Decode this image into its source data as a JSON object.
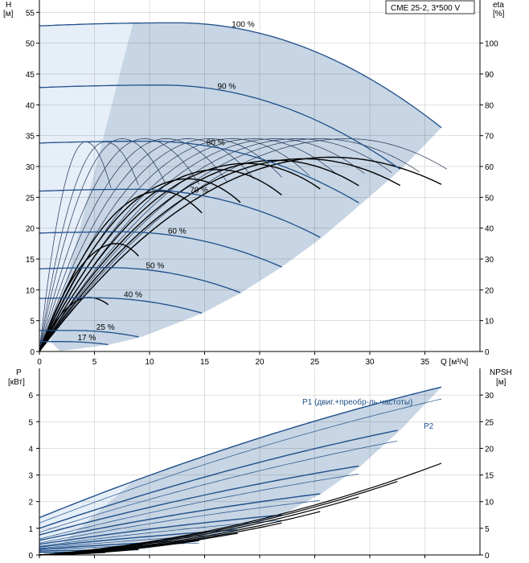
{
  "title": "CME 25-2, 3*500 V",
  "colors": {
    "region_dark": "#c7d5e4",
    "region_light": "#e6eef8",
    "curve_blue": "#1f4f8a",
    "curve_thin": "#223355",
    "curve_black": "#000000",
    "axis": "#000000",
    "grid": "#000000"
  },
  "chart_data": [
    {
      "type": "line",
      "name": "head-efficiency",
      "ylabel_left": "H",
      "yunit_left": "[м]",
      "ylabel_right": "eta",
      "yunit_right": "[%]",
      "xlabel": "Q [м³/ч]",
      "xlim": [
        0,
        40
      ],
      "ylim": [
        0,
        57
      ],
      "xticks": [
        0,
        5,
        10,
        15,
        20,
        25,
        30,
        35
      ],
      "yticks_left": [
        0,
        5,
        10,
        15,
        20,
        25,
        30,
        35,
        40,
        45,
        50,
        55
      ],
      "yticks_right": [
        0,
        10,
        20,
        30,
        40,
        50,
        60,
        70,
        80,
        90,
        100
      ],
      "ylim_right": [
        0,
        114
      ],
      "speed_curves": [
        {
          "label": "100 %",
          "h0": 52.8,
          "hmax": 53.3,
          "qmax": 36.5,
          "hend": 36.3
        },
        {
          "label": "90 %",
          "h0": 42.8,
          "hmax": 43.2,
          "qmax": 32.8,
          "hend": 29.5
        },
        {
          "label": "80 %",
          "h0": 33.8,
          "hmax": 34.1,
          "qmax": 29.2,
          "hend": 23.9
        },
        {
          "label": "70 %",
          "h0": 26.0,
          "hmax": 26.3,
          "qmax": 25.6,
          "hend": 18.4
        },
        {
          "label": "60 %",
          "h0": 19.2,
          "hmax": 19.4,
          "qmax": 22.0,
          "hend": 13.7
        },
        {
          "label": "50 %",
          "h0": 13.4,
          "hmax": 13.6,
          "qmax": 18.3,
          "hend": 9.5
        },
        {
          "label": "40 %",
          "h0": 8.6,
          "hmax": 8.7,
          "qmax": 14.8,
          "hend": 6.2
        },
        {
          "label": "25 %",
          "h0": 3.4,
          "hmax": 3.4,
          "qmax": 9.2,
          "hend": 2.3
        },
        {
          "label": "17 %",
          "h0": 1.6,
          "hmax": 1.6,
          "qmax": 6.3,
          "hend": 1.1
        }
      ],
      "efficiency_curves": [
        {
          "qmax": 36.5,
          "peak_q": 26.5,
          "peak_eta": 63
        },
        {
          "qmax": 32.8,
          "peak_q": 24.0,
          "peak_eta": 62.5
        },
        {
          "qmax": 29.2,
          "peak_q": 21.5,
          "peak_eta": 62
        },
        {
          "qmax": 25.6,
          "peak_q": 18.8,
          "peak_eta": 61
        },
        {
          "qmax": 22.0,
          "peak_q": 16.2,
          "peak_eta": 59
        },
        {
          "qmax": 18.3,
          "peak_q": 13.5,
          "peak_eta": 56
        },
        {
          "qmax": 14.8,
          "peak_q": 11.0,
          "peak_eta": 52
        },
        {
          "qmax": 9.2,
          "peak_q": 7.0,
          "peak_eta": 35
        },
        {
          "qmax": 6.3,
          "peak_q": 4.5,
          "peak_eta": 17.5
        }
      ],
      "thin_efficiency_curves": [
        {
          "qmax": 37.0,
          "peak_q": 28.0,
          "peak_eta": 69
        },
        {
          "qmax": 34.5,
          "peak_q": 25.5,
          "peak_eta": 69
        },
        {
          "qmax": 32.0,
          "peak_q": 23.5,
          "peak_eta": 69
        },
        {
          "qmax": 29.5,
          "peak_q": 21.5,
          "peak_eta": 69
        },
        {
          "qmax": 27.0,
          "peak_q": 19.5,
          "peak_eta": 69
        },
        {
          "qmax": 24.5,
          "peak_q": 17.5,
          "peak_eta": 69
        },
        {
          "qmax": 22.0,
          "peak_q": 15.5,
          "peak_eta": 69
        },
        {
          "qmax": 19.5,
          "peak_q": 13.5,
          "peak_eta": 69
        },
        {
          "qmax": 17.0,
          "peak_q": 11.5,
          "peak_eta": 69
        },
        {
          "qmax": 14.5,
          "peak_q": 9.5,
          "peak_eta": 69
        },
        {
          "qmax": 11.5,
          "peak_q": 7.5,
          "peak_eta": 69
        },
        {
          "qmax": 9.0,
          "peak_q": 6.0,
          "peak_eta": 68
        },
        {
          "qmax": 6.5,
          "peak_q": 4.2,
          "peak_eta": 68
        }
      ]
    },
    {
      "type": "line",
      "name": "power-npsh",
      "ylabel_left": "P",
      "yunit_left": "[кВт]",
      "ylabel_right": "NPSH",
      "yunit_right": "[м]",
      "xlim": [
        0,
        40
      ],
      "ylim": [
        0,
        7
      ],
      "yticks_left": [
        0,
        1,
        2,
        3,
        4,
        5,
        6
      ],
      "ylim_right": [
        0,
        35
      ],
      "yticks_right": [
        0,
        5,
        10,
        15,
        20,
        25,
        30
      ],
      "series_labels": {
        "p1": "P1 (двиг.+преобр-ль частоты)",
        "p2": "P2"
      },
      "p1_curves": [
        {
          "p0": 1.4,
          "qmax": 36.5,
          "pend": 6.3
        },
        {
          "p0": 1.0,
          "qmax": 32.8,
          "pend": 4.7
        },
        {
          "p0": 0.75,
          "qmax": 29.2,
          "pend": 3.35
        },
        {
          "p0": 0.55,
          "qmax": 25.6,
          "pend": 2.3
        },
        {
          "p0": 0.4,
          "qmax": 22.0,
          "pend": 1.5
        },
        {
          "p0": 0.3,
          "qmax": 18.3,
          "pend": 0.95
        },
        {
          "p0": 0.22,
          "qmax": 14.8,
          "pend": 0.55
        },
        {
          "p0": 0.15,
          "qmax": 9.2,
          "pend": 0.2
        },
        {
          "p0": 0.1,
          "qmax": 6.3,
          "pend": 0.1
        }
      ],
      "p2_curves": [
        {
          "p0": 1.2,
          "qmax": 36.5,
          "pend": 5.85
        },
        {
          "p0": 0.85,
          "qmax": 32.8,
          "pend": 4.3
        },
        {
          "p0": 0.6,
          "qmax": 29.2,
          "pend": 3.05
        },
        {
          "p0": 0.45,
          "qmax": 25.6,
          "pend": 2.05
        },
        {
          "p0": 0.33,
          "qmax": 22.0,
          "pend": 1.3
        },
        {
          "p0": 0.25,
          "qmax": 18.3,
          "pend": 0.8
        },
        {
          "p0": 0.18,
          "qmax": 14.8,
          "pend": 0.45
        }
      ],
      "npsh_curves": [
        {
          "qmax": 36.5,
          "npsh_end": 17.2
        },
        {
          "qmax": 32.8,
          "npsh_end": 14.0
        },
        {
          "qmax": 29.2,
          "npsh_end": 11.0
        },
        {
          "qmax": 25.6,
          "npsh_end": 8.2
        },
        {
          "qmax": 22.0,
          "npsh_end": 6.0
        },
        {
          "qmax": 18.3,
          "npsh_end": 4.2
        },
        {
          "qmax": 14.8,
          "npsh_end": 2.8
        },
        {
          "qmax": 9.2,
          "npsh_end": 1.1
        },
        {
          "qmax": 6.3,
          "npsh_end": 0.5
        }
      ]
    }
  ]
}
